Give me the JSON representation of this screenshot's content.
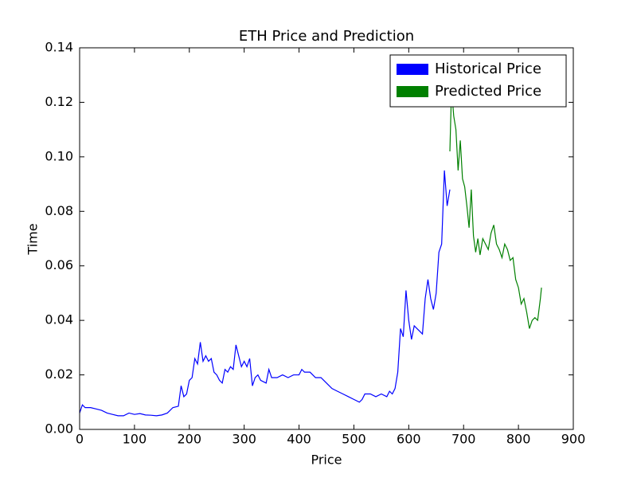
{
  "chart_data": {
    "type": "line",
    "title": "ETH Price and Prediction",
    "xlabel": "Price",
    "ylabel": "Time",
    "xlim": [
      0,
      900
    ],
    "xticks": [
      0,
      100,
      200,
      300,
      400,
      500,
      600,
      700,
      800,
      900
    ],
    "ylim": [
      0,
      0.14
    ],
    "yticks": [
      {
        "value": 0,
        "label": "0.00"
      },
      {
        "value": 0.02,
        "label": "0.02"
      },
      {
        "value": 0.04,
        "label": "0.04"
      },
      {
        "value": 0.06,
        "label": "0.06"
      },
      {
        "value": 0.08,
        "label": "0.08"
      },
      {
        "value": 0.1,
        "label": "0.10"
      },
      {
        "value": 0.12,
        "label": "0.12"
      },
      {
        "value": 0.14,
        "label": "0.14"
      }
    ],
    "legend": "upper right",
    "series": [
      {
        "name": "Historical Price",
        "color": "#0000ff",
        "x": [
          0,
          5,
          10,
          20,
          30,
          40,
          50,
          60,
          70,
          80,
          90,
          100,
          110,
          120,
          130,
          140,
          150,
          160,
          170,
          180,
          185,
          190,
          195,
          200,
          205,
          210,
          215,
          220,
          225,
          230,
          235,
          240,
          245,
          250,
          255,
          260,
          265,
          270,
          275,
          280,
          285,
          290,
          295,
          300,
          305,
          310,
          315,
          320,
          325,
          330,
          340,
          345,
          350,
          360,
          370,
          380,
          390,
          400,
          405,
          410,
          420,
          430,
          440,
          450,
          460,
          470,
          480,
          490,
          500,
          510,
          515,
          520,
          530,
          540,
          550,
          560,
          565,
          570,
          575,
          580,
          585,
          590,
          595,
          600,
          605,
          610,
          615,
          620,
          625,
          630,
          635,
          640,
          645,
          650,
          655,
          660,
          665,
          670,
          675
        ],
        "values": [
          0.006,
          0.009,
          0.008,
          0.008,
          0.0075,
          0.007,
          0.006,
          0.0055,
          0.005,
          0.005,
          0.006,
          0.0055,
          0.0058,
          0.0053,
          0.0052,
          0.005,
          0.0053,
          0.006,
          0.008,
          0.0085,
          0.016,
          0.012,
          0.013,
          0.018,
          0.019,
          0.026,
          0.024,
          0.032,
          0.025,
          0.027,
          0.025,
          0.026,
          0.021,
          0.02,
          0.018,
          0.017,
          0.022,
          0.021,
          0.023,
          0.022,
          0.031,
          0.027,
          0.023,
          0.025,
          0.023,
          0.026,
          0.016,
          0.019,
          0.02,
          0.018,
          0.017,
          0.022,
          0.019,
          0.019,
          0.02,
          0.019,
          0.02,
          0.02,
          0.022,
          0.021,
          0.021,
          0.019,
          0.019,
          0.017,
          0.015,
          0.014,
          0.013,
          0.012,
          0.011,
          0.01,
          0.011,
          0.013,
          0.013,
          0.012,
          0.013,
          0.012,
          0.014,
          0.013,
          0.015,
          0.021,
          0.037,
          0.034,
          0.051,
          0.04,
          0.033,
          0.038,
          0.037,
          0.036,
          0.035,
          0.048,
          0.055,
          0.048,
          0.044,
          0.05,
          0.065,
          0.068,
          0.095,
          0.082,
          0.088
        ]
      },
      {
        "name": "Predicted Price",
        "color": "#008000",
        "x": [
          675,
          678,
          682,
          686,
          690,
          694,
          698,
          702,
          706,
          710,
          714,
          718,
          722,
          726,
          730,
          735,
          740,
          745,
          750,
          755,
          760,
          765,
          770,
          775,
          780,
          785,
          790,
          795,
          800,
          805,
          810,
          815,
          820,
          825,
          830,
          835,
          840,
          842
        ],
        "values": [
          0.102,
          0.125,
          0.115,
          0.11,
          0.095,
          0.106,
          0.092,
          0.089,
          0.082,
          0.074,
          0.088,
          0.071,
          0.065,
          0.07,
          0.064,
          0.07,
          0.068,
          0.066,
          0.072,
          0.075,
          0.068,
          0.066,
          0.063,
          0.068,
          0.066,
          0.062,
          0.063,
          0.055,
          0.052,
          0.046,
          0.048,
          0.043,
          0.037,
          0.04,
          0.041,
          0.04,
          0.048,
          0.052
        ]
      }
    ]
  }
}
